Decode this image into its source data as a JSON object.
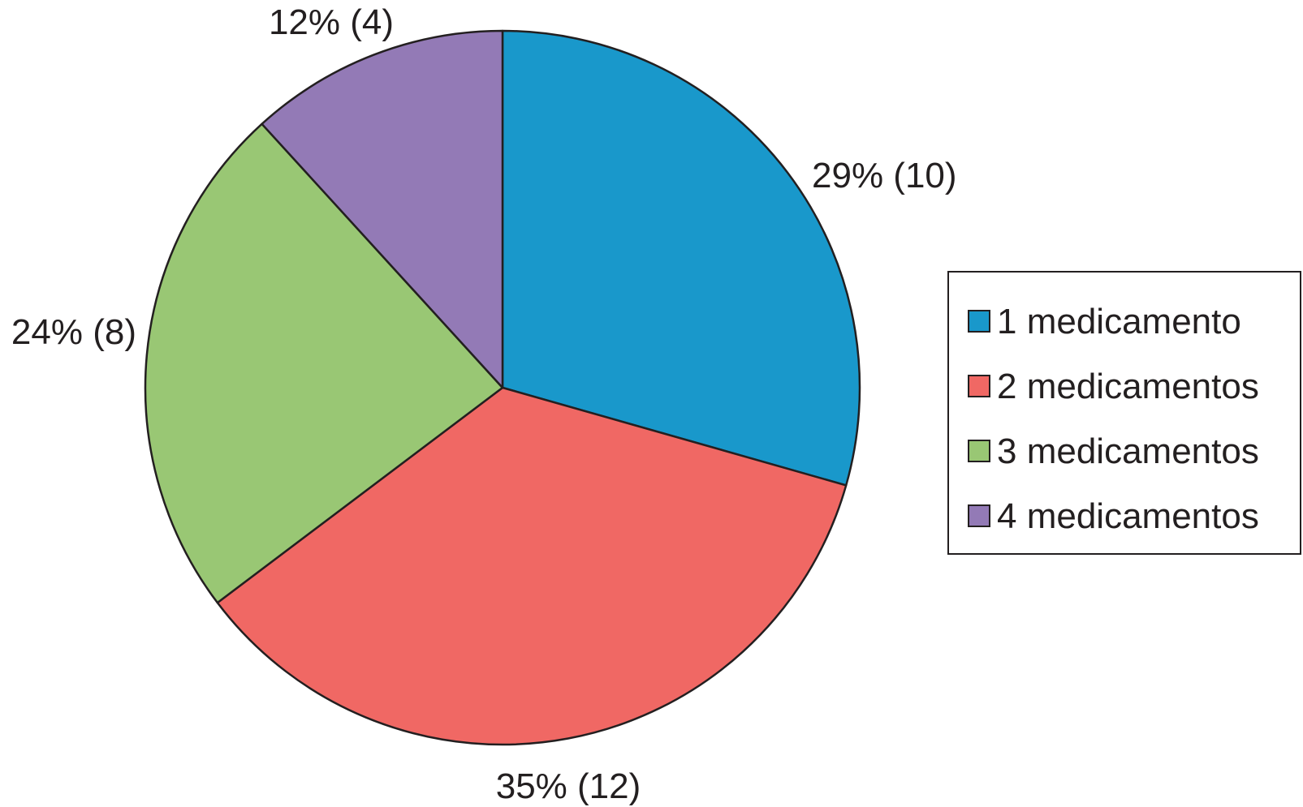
{
  "chart_data": {
    "type": "pie",
    "categories": [
      "1 medicamento",
      "2 medicamentos",
      "3 medicamentos",
      "4 medicamentos"
    ],
    "values": [
      10,
      12,
      8,
      4
    ],
    "percentages": [
      29,
      35,
      24,
      12
    ],
    "data_labels": [
      "29% (10)",
      "35% (12)",
      "24% (8)",
      "12% (4)"
    ],
    "colors": [
      "#1998cb",
      "#f06864",
      "#99c774",
      "#937ab6"
    ],
    "start_angle_deg": 0,
    "direction": "clockwise",
    "legend": {
      "position": "right",
      "entries": [
        "1 medicamento",
        "2 medicamentos",
        "3 medicamentos",
        "4 medicamentos"
      ]
    }
  }
}
